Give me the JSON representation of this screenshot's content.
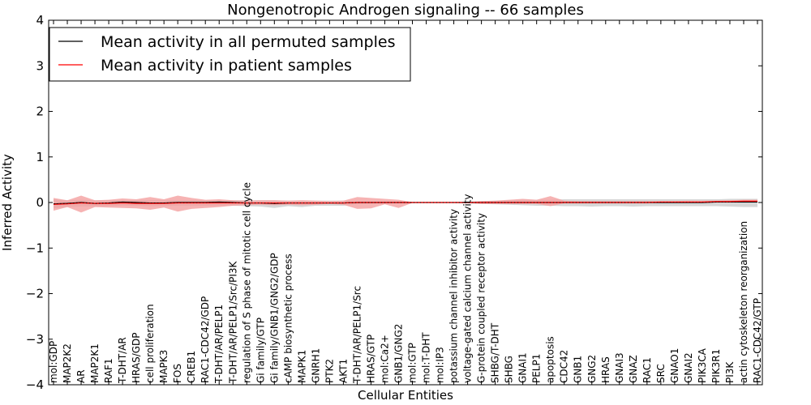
{
  "chart_data": {
    "type": "line",
    "title": "Nongenotropic Androgen signaling -- 66 samples",
    "xlabel": "Cellular Entities",
    "ylabel": "Inferred Activity",
    "ylim": [
      -4,
      4
    ],
    "yticks": [
      "−4",
      "−3",
      "−2",
      "−1",
      "0",
      "1",
      "2",
      "3",
      "4"
    ],
    "categories": [
      "mol:GDP",
      "MAP2K2",
      "AR",
      "MAP2K1",
      "RAF1",
      "T-DHT/AR",
      "HRAS/GDP",
      "cell proliferation",
      "MAPK3",
      "FOS",
      "CREB1",
      "RAC1-CDC42/GDP",
      "T-DHT/AR/PELP1",
      "T-DHT/AR/PELP1/Src/PI3K",
      "regulation of S phase of mitotic cell cycle",
      "Gi family/GTP",
      "Gi family/GNB1/GNG2/GDP",
      "cAMP biosynthetic process",
      "MAPK1",
      "GNRH1",
      "PTK2",
      "AKT1",
      "T-DHT/AR/PELP1/Src",
      "HRAS/GTP",
      "mol:Ca2+",
      "GNB1/GNG2",
      "mol:GTP",
      "mol:T-DHT",
      "mol:IP3",
      "potassium channel inhibitor activity",
      "voltage-gated calcium channel activity",
      "G-protein coupled receptor activity",
      "SHBG/T-DHT",
      "SHBG",
      "GNAI1",
      "PELP1",
      "apoptosis",
      "CDC42",
      "GNB1",
      "GNG2",
      "HRAS",
      "GNAI3",
      "GNAZ",
      "RAC1",
      "SRC",
      "GNAO1",
      "GNAI2",
      "PIK3CA",
      "PIK3R1",
      "PI3K",
      "actin cytoskeleton reorganization",
      "RAC1-CDC42/GTP"
    ],
    "series": [
      {
        "name": "Mean activity in all permuted samples",
        "color": "#000000",
        "band_color": "#c8c8c8",
        "values": [
          -0.03,
          -0.02,
          0.0,
          -0.02,
          -0.01,
          0.01,
          0.0,
          -0.01,
          -0.01,
          0.0,
          0.0,
          0.0,
          0.01,
          0.0,
          -0.01,
          -0.01,
          -0.02,
          -0.01,
          -0.01,
          -0.01,
          -0.01,
          -0.01,
          0.0,
          0.0,
          0.0,
          0.0,
          0.0,
          0.0,
          0.0,
          0.0,
          0.0,
          0.0,
          0.0,
          0.0,
          0.0,
          0.0,
          0.0,
          0.0,
          0.0,
          0.0,
          0.0,
          0.0,
          0.0,
          0.0,
          0.0,
          0.0,
          0.0,
          0.0,
          0.01,
          0.01,
          0.01,
          0.01
        ],
        "upper": [
          0.07,
          0.05,
          0.06,
          0.05,
          0.05,
          0.05,
          0.05,
          0.05,
          0.05,
          0.05,
          0.05,
          0.05,
          0.05,
          0.05,
          0.05,
          0.05,
          0.05,
          0.04,
          0.04,
          0.04,
          0.04,
          0.04,
          0.02,
          0.02,
          0.02,
          0.02,
          0.01,
          0.01,
          0.01,
          0.01,
          0.02,
          0.03,
          0.04,
          0.05,
          0.06,
          0.06,
          0.06,
          0.07,
          0.07,
          0.07,
          0.07,
          0.07,
          0.07,
          0.07,
          0.07,
          0.07,
          0.07,
          0.07,
          0.07,
          0.08,
          0.08,
          0.08
        ],
        "lower": [
          -0.13,
          -0.1,
          -0.09,
          -0.09,
          -0.08,
          -0.07,
          -0.07,
          -0.08,
          -0.08,
          -0.07,
          -0.07,
          -0.07,
          -0.07,
          -0.07,
          -0.08,
          -0.09,
          -0.12,
          -0.08,
          -0.1,
          -0.07,
          -0.07,
          -0.07,
          -0.04,
          -0.03,
          -0.02,
          -0.02,
          -0.01,
          -0.01,
          -0.01,
          -0.01,
          -0.02,
          -0.03,
          -0.04,
          -0.05,
          -0.06,
          -0.07,
          -0.07,
          -0.08,
          -0.08,
          -0.09,
          -0.08,
          -0.08,
          -0.09,
          -0.08,
          -0.08,
          -0.08,
          -0.08,
          -0.08,
          -0.08,
          -0.09,
          -0.1,
          -0.1
        ]
      },
      {
        "name": "Mean activity in patient samples",
        "color": "#ff0000",
        "band_color": "#f4a0a0",
        "values": [
          -0.04,
          -0.03,
          -0.01,
          -0.02,
          -0.02,
          -0.01,
          -0.02,
          -0.02,
          -0.02,
          -0.01,
          -0.01,
          -0.01,
          -0.01,
          -0.01,
          -0.01,
          -0.01,
          -0.01,
          -0.01,
          -0.01,
          -0.01,
          -0.01,
          -0.01,
          0.0,
          0.0,
          0.0,
          0.0,
          0.0,
          0.0,
          0.0,
          0.0,
          0.0,
          0.0,
          0.0,
          0.0,
          0.0,
          0.0,
          0.0,
          0.0,
          0.0,
          0.0,
          0.0,
          0.0,
          0.0,
          0.0,
          0.01,
          0.01,
          0.01,
          0.01,
          0.02,
          0.02,
          0.03,
          0.03
        ],
        "upper": [
          0.1,
          0.05,
          0.15,
          0.05,
          0.06,
          0.09,
          0.07,
          0.12,
          0.07,
          0.15,
          0.1,
          0.06,
          0.07,
          0.05,
          0.04,
          0.05,
          0.05,
          0.04,
          0.05,
          0.04,
          0.03,
          0.04,
          0.12,
          0.1,
          0.08,
          0.06,
          0.01,
          0.01,
          0.01,
          0.01,
          0.01,
          0.03,
          0.04,
          0.06,
          0.08,
          0.06,
          0.14,
          0.04,
          0.03,
          0.03,
          0.03,
          0.03,
          0.03,
          0.03,
          0.03,
          0.03,
          0.04,
          0.04,
          0.04,
          0.05,
          0.06,
          0.06
        ],
        "lower": [
          -0.18,
          -0.1,
          -0.22,
          -0.1,
          -0.11,
          -0.12,
          -0.13,
          -0.16,
          -0.11,
          -0.2,
          -0.14,
          -0.12,
          -0.1,
          -0.07,
          -0.06,
          -0.05,
          -0.06,
          -0.05,
          -0.06,
          -0.05,
          -0.03,
          -0.05,
          -0.14,
          -0.13,
          -0.04,
          -0.12,
          -0.01,
          -0.01,
          -0.01,
          -0.01,
          -0.01,
          -0.03,
          -0.03,
          -0.03,
          -0.03,
          -0.03,
          -0.08,
          -0.02,
          -0.02,
          -0.02,
          -0.02,
          -0.02,
          -0.02,
          -0.02,
          -0.01,
          -0.01,
          -0.01,
          -0.01,
          0.0,
          0.0,
          0.0,
          0.0
        ]
      }
    ],
    "legend": "top-left"
  }
}
